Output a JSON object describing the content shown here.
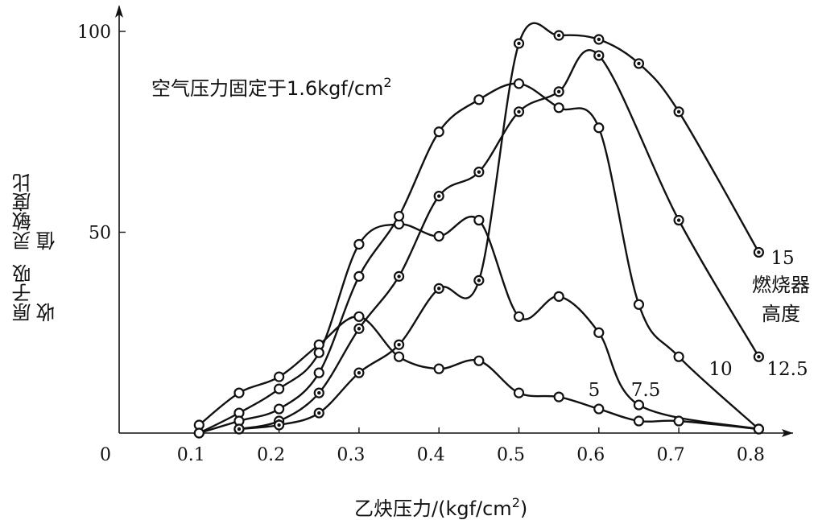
{
  "chart_data": {
    "type": "line",
    "xlabel": "乙炔压力/(kgf/cm",
    "xlabel_sup": "2",
    "xlabel_close": ")",
    "ylabel_lines": [
      "原子吸收",
      "灵敏度比值"
    ],
    "annotation": "空气压力固定于1.6kgf/cm",
    "annotation_sup": "2",
    "legend_title_lines": [
      "燃烧器",
      "高度"
    ],
    "xlim": [
      0,
      0.85
    ],
    "ylim": [
      0,
      100
    ],
    "x_ticks": [
      0.1,
      0.2,
      0.3,
      0.4,
      0.5,
      0.6,
      0.7,
      0.8
    ],
    "x_tick_labels": [
      "0.1",
      "0.2",
      "0.3",
      "0.4",
      "0.5",
      "0.6",
      "0.7",
      "0.8"
    ],
    "origin_label": "0",
    "y_ticks": [
      50,
      100
    ],
    "y_tick_labels": [
      "50",
      "100"
    ],
    "series": [
      {
        "name": "5",
        "marker": "open",
        "x": [
          0.1,
          0.15,
          0.2,
          0.25,
          0.3,
          0.35,
          0.4,
          0.45,
          0.5,
          0.55,
          0.6,
          0.65,
          0.7,
          0.8
        ],
        "y": [
          2,
          10,
          14,
          22,
          29,
          19,
          16,
          18,
          10,
          9,
          6,
          3,
          3,
          1
        ]
      },
      {
        "name": "7.5",
        "marker": "open",
        "x": [
          0.1,
          0.15,
          0.2,
          0.25,
          0.3,
          0.35,
          0.4,
          0.45,
          0.5,
          0.55,
          0.6,
          0.65,
          0.8
        ],
        "y": [
          0,
          5,
          11,
          20,
          47,
          52,
          49,
          53,
          29,
          34,
          25,
          7,
          1
        ]
      },
      {
        "name": "10",
        "marker": "open",
        "x": [
          0.1,
          0.15,
          0.2,
          0.25,
          0.3,
          0.35,
          0.4,
          0.45,
          0.5,
          0.55,
          0.6,
          0.65,
          0.7,
          0.8
        ],
        "y": [
          0,
          3,
          6,
          15,
          39,
          54,
          75,
          83,
          87,
          81,
          76,
          32,
          19,
          1
        ]
      },
      {
        "name": "12.5",
        "marker": "dotted",
        "x": [
          0.15,
          0.2,
          0.25,
          0.3,
          0.35,
          0.4,
          0.45,
          0.5,
          0.55,
          0.6,
          0.7,
          0.8
        ],
        "y": [
          1,
          3,
          10,
          26,
          39,
          59,
          65,
          80,
          85,
          94,
          53,
          19
        ]
      },
      {
        "name": "15",
        "marker": "dotted",
        "x": [
          0.15,
          0.2,
          0.25,
          0.3,
          0.35,
          0.4,
          0.45,
          0.5,
          0.55,
          0.6,
          0.65,
          0.7,
          0.8
        ],
        "y": [
          1,
          2,
          5,
          15,
          22,
          36,
          38,
          97,
          99,
          98,
          92,
          80,
          45
        ]
      }
    ]
  }
}
